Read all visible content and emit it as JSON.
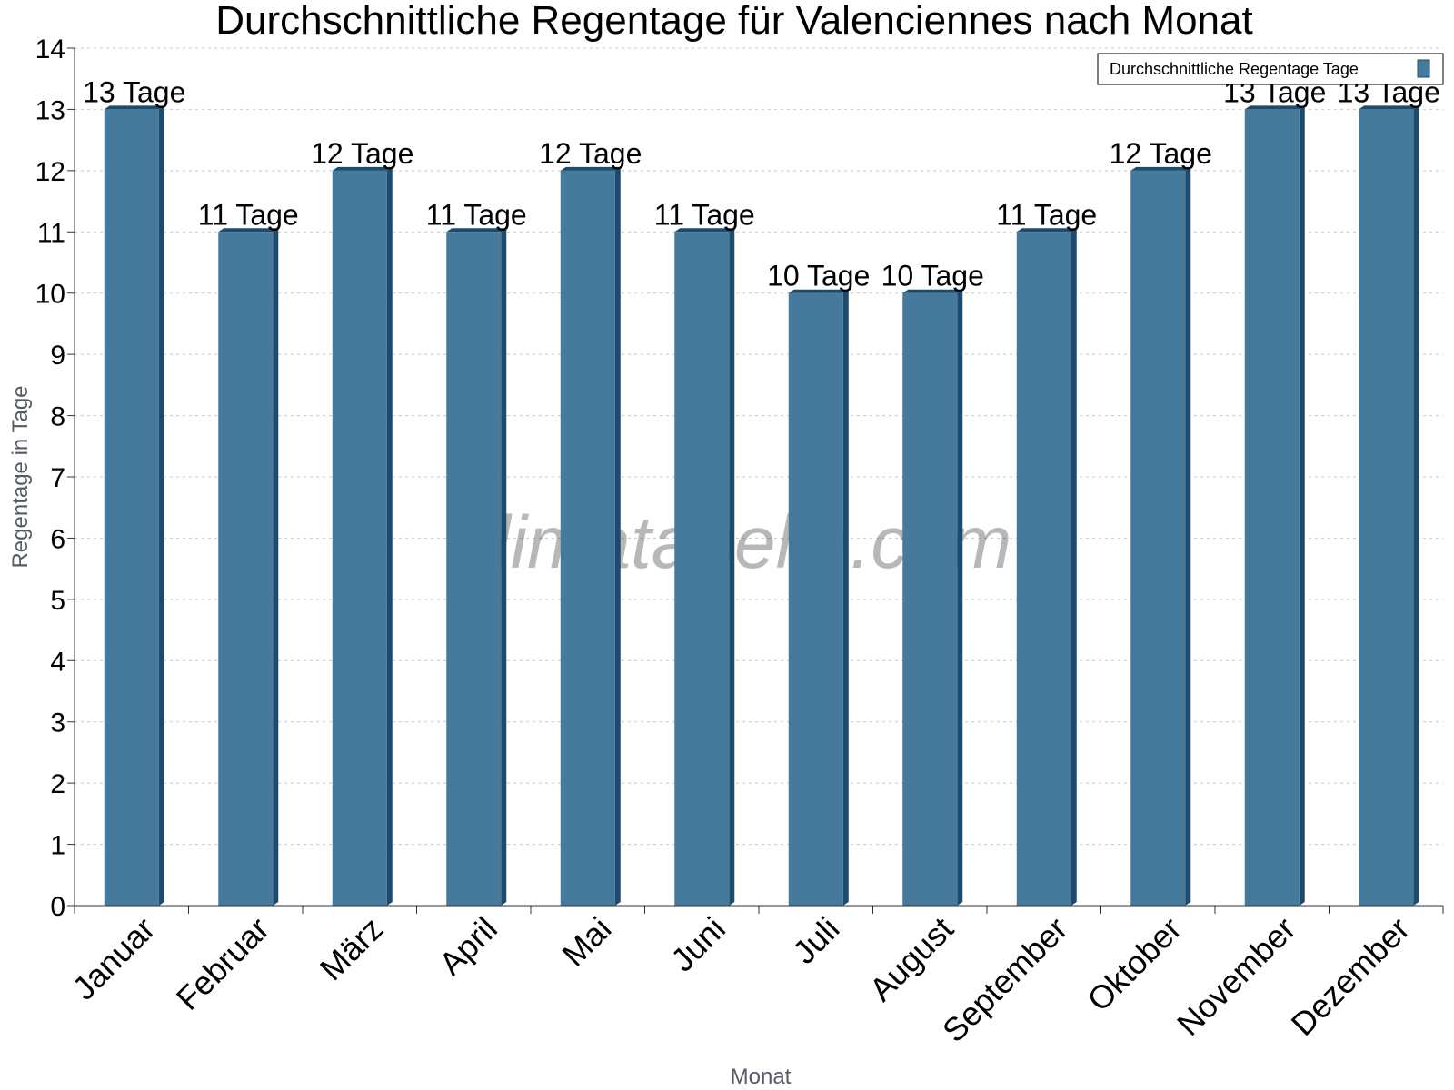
{
  "chart_data": {
    "type": "bar",
    "title": "Durchschnittliche Regentage für Valenciennes nach Monat",
    "xlabel": "Monat",
    "ylabel": "Regentage in Tage",
    "categories": [
      "Januar",
      "Februar",
      "März",
      "April",
      "Mai",
      "Juni",
      "Juli",
      "August",
      "September",
      "Oktober",
      "November",
      "Dezember"
    ],
    "series": [
      {
        "name": "Durchschnittliche Regentage Tage",
        "values": [
          13,
          11,
          12,
          11,
          12,
          11,
          10,
          10,
          11,
          12,
          13,
          13
        ],
        "labels": [
          "13 Tage",
          "11 Tage",
          "12 Tage",
          "11 Tage",
          "12 Tage",
          "11 Tage",
          "10 Tage",
          "10 Tage",
          "11 Tage",
          "12 Tage",
          "13 Tage",
          "13 Tage"
        ]
      }
    ],
    "ylim": [
      0,
      14
    ],
    "yticks": [
      "0",
      "1",
      "2",
      "3",
      "4",
      "5",
      "6",
      "7",
      "8",
      "9",
      "10",
      "11",
      "12",
      "13",
      "14"
    ],
    "grid": true,
    "legend_position": "top-right",
    "colors": {
      "bar": "#467a9d",
      "bar_side": "#1c4b6d",
      "grid": "#c8c8c8",
      "axis": "#333333"
    },
    "watermark": "klimatabelle.com"
  }
}
